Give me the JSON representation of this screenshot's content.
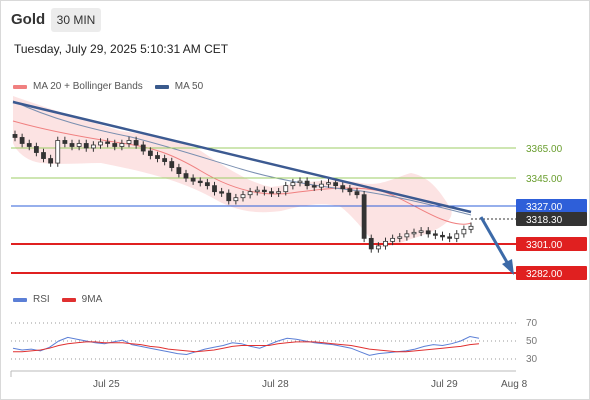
{
  "header": {
    "symbol": "Gold",
    "timeframe": "30 MIN",
    "datetime": "Tuesday, July 29, 2025 5:10:31 AM CET"
  },
  "legend": {
    "ma20_label": "MA 20 + Bollinger Bands",
    "ma50_label": "MA 50",
    "ma20_color": "#f08080",
    "ma50_color": "#3a5a8c"
  },
  "rsi_legend": {
    "rsi_label": "RSI",
    "ma9_label": "9MA",
    "rsi_color": "#5b7fd6",
    "ma9_color": "#e03030"
  },
  "levels": [
    {
      "value": "3365.00",
      "kind": "resistance-green"
    },
    {
      "value": "3345.00",
      "kind": "resistance-green"
    },
    {
      "value": "3327.00",
      "kind": "pivot-blue"
    },
    {
      "value": "3318.30",
      "kind": "current-price"
    },
    {
      "value": "3301.00",
      "kind": "support-red"
    },
    {
      "value": "3282.00",
      "kind": "support-red"
    }
  ],
  "rsi_levels": [
    "70",
    "50",
    "30"
  ],
  "x_axis": [
    "Jul 25",
    "Jul 28",
    "Jul 29",
    "Aug 8"
  ],
  "colors": {
    "green": "#8bc34a",
    "blue": "#2e5fd9",
    "red": "#e02020",
    "dark": "#333333",
    "band": "#fbdede",
    "trend": "#3c5a91"
  },
  "chart_data": {
    "type": "candlestick",
    "symbol": "Gold",
    "timeframe": "30 MIN",
    "current_price": 3318.3,
    "horizontal_levels": [
      3365.0,
      3345.0,
      3327.0,
      3301.0,
      3282.0
    ],
    "x_tick_labels": [
      "Jul 25",
      "Jul 28",
      "Jul 29",
      "Aug 8"
    ],
    "trendline": "descending",
    "projection": "down-to-3282",
    "close_series": [
      3372,
      3368,
      3366,
      3362,
      3358,
      3355,
      3370,
      3368,
      3366,
      3368,
      3365,
      3367,
      3369,
      3368,
      3366,
      3368,
      3370,
      3367,
      3363,
      3360,
      3358,
      3356,
      3352,
      3348,
      3345,
      3343,
      3342,
      3340,
      3336,
      3335,
      3330,
      3332,
      3334,
      3336,
      3337,
      3336,
      3335,
      3336,
      3340,
      3342,
      3343,
      3340,
      3339,
      3341,
      3342,
      3340,
      3338,
      3336,
      3334,
      3305,
      3298,
      3300,
      3303,
      3305,
      3306,
      3308,
      3309,
      3310,
      3308,
      3307,
      3306,
      3305,
      3308,
      3311,
      3313
    ],
    "rsi": {
      "levels": [
        70,
        50,
        30
      ],
      "rsi_series": [
        42,
        40,
        41,
        39,
        43,
        50,
        54,
        52,
        50,
        48,
        47,
        49,
        51,
        46,
        44,
        42,
        40,
        38,
        36,
        35,
        38,
        41,
        43,
        45,
        48,
        47,
        44,
        42,
        46,
        50,
        53,
        52,
        50,
        48,
        47,
        46,
        44,
        42,
        38,
        34,
        36,
        37,
        38,
        39,
        41,
        44,
        46,
        45,
        47,
        50,
        55,
        53
      ],
      "ma9_series": [
        38,
        38,
        39,
        40,
        42,
        45,
        47,
        48,
        49,
        49,
        48,
        48,
        48,
        47,
        46,
        44,
        43,
        41,
        40,
        39,
        38,
        39,
        40,
        42,
        44,
        45,
        45,
        45,
        45,
        47,
        48,
        49,
        49,
        49,
        48,
        47,
        46,
        45,
        43,
        41,
        40,
        39,
        38,
        38,
        39,
        40,
        41,
        42,
        43,
        44,
        46,
        47
      ]
    }
  }
}
